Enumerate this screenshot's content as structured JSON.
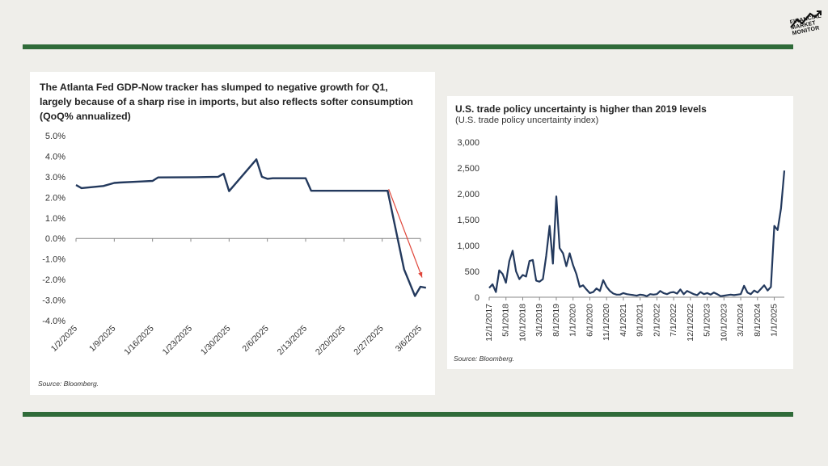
{
  "logo_text": [
    "FINANCIAL",
    "MARKET",
    "MONITOR"
  ],
  "colors": {
    "line": "#23395d",
    "arrow": "#e0463a",
    "rule": "#2f6b39",
    "background": "#efeeea"
  },
  "chart_data": [
    {
      "type": "line",
      "title": "The Atlanta Fed GDP-Now tracker has slumped to negative growth for Q1, largely because of a sharp rise in imports, but also reflects softer consumption  (QoQ% annualized)",
      "source": "Source: Bloomberg.",
      "ylim": [
        -4,
        5
      ],
      "ytick_labels": [
        "5.0%",
        "4.0%",
        "3.0%",
        "2.0%",
        "1.0%",
        "0.0%",
        "-1.0%",
        "-2.0%",
        "-3.0%",
        "-4.0%"
      ],
      "xtick_labels": [
        "1/2/2025",
        "1/9/2025",
        "1/16/2025",
        "1/23/2025",
        "1/30/2025",
        "2/6/2025",
        "2/13/2025",
        "2/20/2025",
        "2/27/2025",
        "3/6/2025"
      ],
      "x": [
        "1/2/2025",
        "1/3/2025",
        "1/7/2025",
        "1/9/2025",
        "1/10/2025",
        "1/14/2025",
        "1/16/2025",
        "1/17/2025",
        "1/24/2025",
        "1/28/2025",
        "1/29/2025",
        "1/30/2025",
        "2/4/2025",
        "2/5/2025",
        "2/6/2025",
        "2/7/2025",
        "2/13/2025",
        "2/14/2025",
        "2/28/2025",
        "3/3/2025",
        "3/5/2025",
        "3/6/2025",
        "3/7/2025"
      ],
      "values": [
        2.6,
        2.45,
        2.55,
        2.7,
        2.72,
        2.77,
        2.8,
        2.97,
        2.98,
        3.0,
        3.15,
        2.3,
        3.85,
        3.0,
        2.9,
        2.93,
        2.93,
        2.32,
        2.32,
        -1.5,
        -2.8,
        -2.35,
        -2.4
      ],
      "annotation": "arrow"
    },
    {
      "type": "line",
      "title": "U.S. trade policy uncertainty is higher than 2019 levels",
      "subtitle": "(U.S. trade policy uncertainty index)",
      "source": "Source: Bloomberg.",
      "ylim": [
        0,
        3000
      ],
      "ytick_labels": [
        "3,000",
        "2,500",
        "2,000",
        "1,500",
        "1,000",
        "500",
        "0"
      ],
      "xtick_labels": [
        "12/1/2017",
        "5/1/2018",
        "10/1/2018",
        "3/1/2019",
        "8/1/2019",
        "1/1/2020",
        "6/1/2020",
        "11/1/2020",
        "4/1/2021",
        "9/1/2021",
        "2/1/2022",
        "7/1/2022",
        "12/1/2022",
        "5/1/2023",
        "10/1/2023",
        "3/1/2024",
        "8/1/2024",
        "1/1/2025"
      ],
      "values": [
        180,
        250,
        100,
        520,
        450,
        280,
        700,
        900,
        500,
        350,
        430,
        400,
        700,
        720,
        320,
        300,
        350,
        800,
        1380,
        650,
        1950,
        950,
        850,
        600,
        850,
        620,
        450,
        200,
        230,
        150,
        80,
        100,
        170,
        120,
        330,
        200,
        120,
        70,
        50,
        50,
        80,
        60,
        50,
        40,
        30,
        50,
        40,
        20,
        60,
        50,
        60,
        120,
        80,
        60,
        90,
        100,
        70,
        150,
        60,
        120,
        90,
        60,
        40,
        100,
        60,
        80,
        50,
        90,
        60,
        20,
        30,
        40,
        50,
        40,
        50,
        60,
        220,
        90,
        60,
        130,
        90,
        160,
        230,
        130,
        200,
        1380,
        1300,
        1720,
        2450
      ]
    }
  ]
}
